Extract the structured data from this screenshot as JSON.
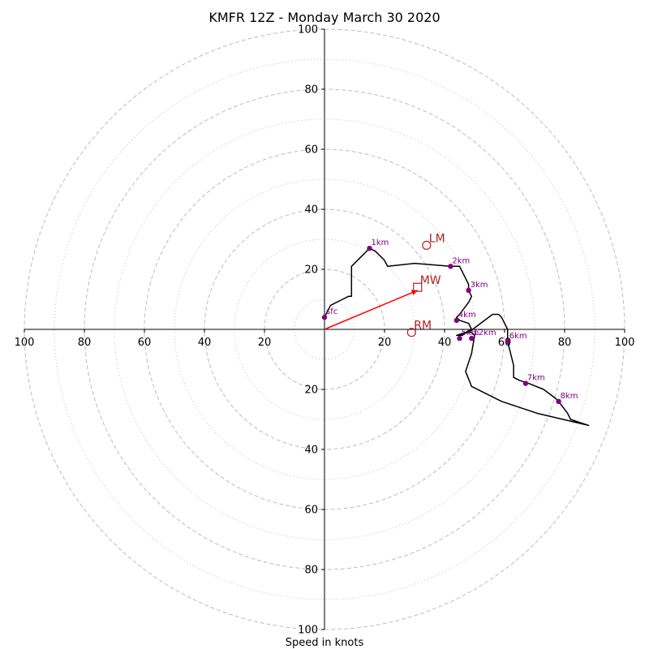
{
  "chart_data": {
    "type": "hodograph",
    "title": "KMFR 12Z - Monday March 30 2020",
    "xlabel": "Speed in knots",
    "units": "knots",
    "xlim": [
      -100,
      100
    ],
    "ylim": [
      -100,
      100
    ],
    "axis_ticks": [
      "100",
      "80",
      "60",
      "40",
      "20",
      "20",
      "40",
      "60",
      "80",
      "100"
    ],
    "rings_major": [
      20,
      40,
      60,
      80,
      100
    ],
    "rings_minor": [
      10,
      30,
      50,
      70,
      90
    ],
    "grid": true,
    "colors": {
      "trace": "#000000",
      "height_points": "#800080",
      "motion": "#b22222",
      "mean_wind_vector": "#ff0000",
      "ring": "#bdbdbd"
    },
    "trace": [
      [
        0,
        4
      ],
      [
        2,
        8
      ],
      [
        6,
        10
      ],
      [
        8,
        11
      ],
      [
        9,
        11
      ],
      [
        9,
        16
      ],
      [
        9,
        21
      ],
      [
        12,
        24
      ],
      [
        15,
        27
      ],
      [
        17,
        26
      ],
      [
        20,
        23
      ],
      [
        21,
        21
      ],
      [
        30,
        22
      ],
      [
        42,
        21
      ],
      [
        45,
        21
      ],
      [
        47,
        17
      ],
      [
        48,
        15
      ],
      [
        48,
        13
      ],
      [
        49,
        11
      ],
      [
        48,
        9
      ],
      [
        45,
        5
      ],
      [
        44,
        4
      ],
      [
        45,
        3
      ],
      [
        48,
        2
      ],
      [
        49,
        0
      ],
      [
        47,
        -1
      ],
      [
        46,
        -2
      ],
      [
        45,
        -2
      ],
      [
        44,
        -2
      ],
      [
        48,
        -1
      ],
      [
        52,
        2
      ],
      [
        56,
        5
      ],
      [
        58,
        5
      ],
      [
        59,
        4
      ],
      [
        60,
        2
      ],
      [
        61,
        0
      ],
      [
        61,
        -4
      ],
      [
        62,
        -8
      ],
      [
        63,
        -12
      ],
      [
        63,
        -16
      ],
      [
        65,
        -17
      ],
      [
        68,
        -18
      ],
      [
        73,
        -20
      ],
      [
        77,
        -23
      ],
      [
        78,
        -24
      ],
      [
        81,
        -28
      ],
      [
        82,
        -30
      ],
      [
        88,
        -32
      ],
      [
        71,
        -28
      ],
      [
        59,
        -24
      ],
      [
        49,
        -19
      ],
      [
        47,
        -14
      ],
      [
        49,
        -8
      ],
      [
        50,
        -2
      ],
      [
        49,
        -1
      ],
      [
        47,
        -1
      ],
      [
        44,
        -2
      ]
    ],
    "height_points": [
      {
        "label": "sfc",
        "u": 0,
        "v": 4
      },
      {
        "label": "1km",
        "u": 15,
        "v": 27
      },
      {
        "label": "2km",
        "u": 42,
        "v": 21
      },
      {
        "label": "3km",
        "u": 48,
        "v": 13
      },
      {
        "label": "4km",
        "u": 44,
        "v": 3
      },
      {
        "label": "5km",
        "u": 45,
        "v": -3
      },
      {
        "label": "6km",
        "u": 61,
        "v": -4
      },
      {
        "label": "7km",
        "u": 67,
        "v": -18
      },
      {
        "label": "8km",
        "u": 78,
        "v": -24
      },
      {
        "label": "12km",
        "u": 49,
        "v": -3
      }
    ],
    "motion_points": [
      {
        "label": "LM",
        "u": 34,
        "v": 28,
        "marker": "circle"
      },
      {
        "label": "MW",
        "u": 31,
        "v": 14,
        "marker": "square"
      },
      {
        "label": "RM",
        "u": 29,
        "v": -1,
        "marker": "circle"
      }
    ],
    "mean_wind_vector": {
      "u": 31,
      "v": 13
    }
  }
}
